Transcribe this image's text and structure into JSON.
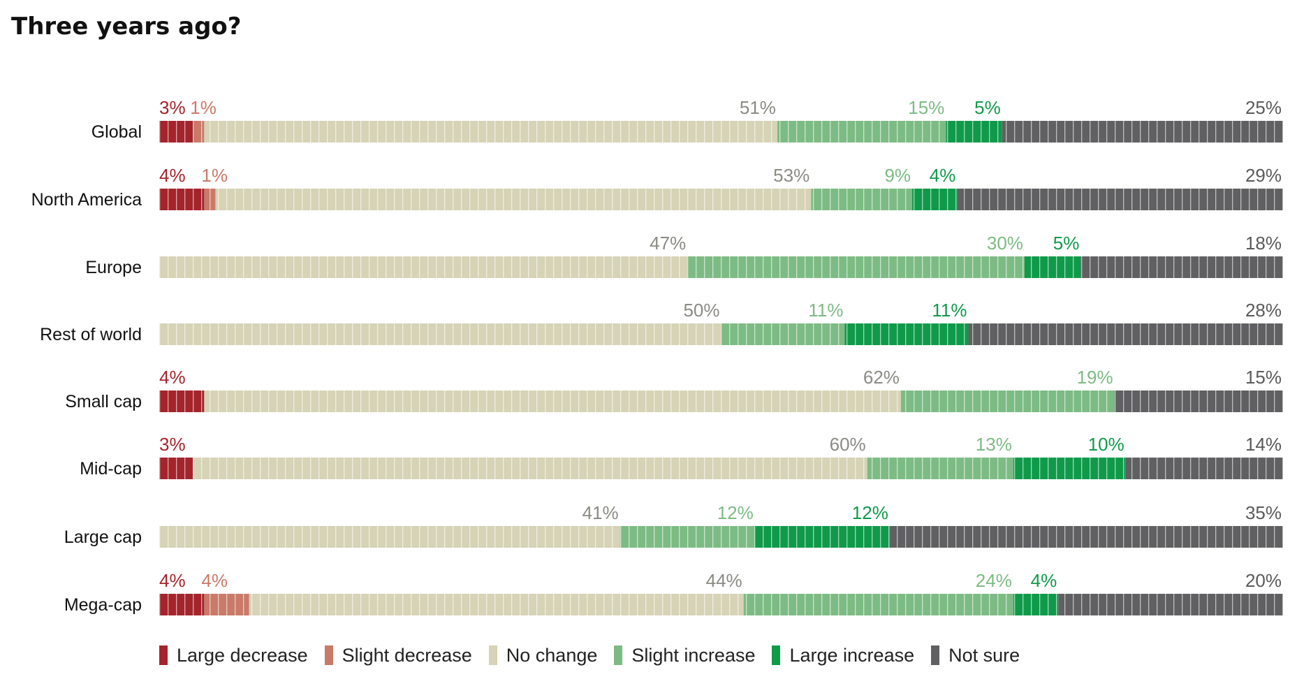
{
  "chart_data": {
    "type": "bar",
    "stacked": true,
    "orientation": "horizontal",
    "title": "Three years ago?",
    "categories": [
      "Global",
      "North America",
      "Europe",
      "Rest of world",
      "Small cap",
      "Mid-cap",
      "Large cap",
      "Mega-cap"
    ],
    "series": [
      {
        "name": "Large decrease",
        "color": "#a4242c",
        "values": [
          3,
          4,
          0,
          0,
          4,
          3,
          0,
          4
        ],
        "labels": [
          "3%",
          "4%",
          "",
          "",
          "4%",
          "3%",
          "",
          "4%"
        ]
      },
      {
        "name": "Slight decrease",
        "color": "#c97a68",
        "values": [
          1,
          1,
          0,
          0,
          0,
          0,
          0,
          4
        ],
        "labels": [
          "1%",
          "1%",
          "",
          "",
          "",
          "",
          "",
          "4%"
        ]
      },
      {
        "name": "No change",
        "color": "#d6d3b6",
        "values": [
          51,
          53,
          47,
          50,
          62,
          60,
          41,
          44
        ],
        "labels": [
          "51%",
          "53%",
          "47%",
          "50%",
          "62%",
          "60%",
          "41%",
          "44%"
        ]
      },
      {
        "name": "Slight increase",
        "color": "#7dbb84",
        "values": [
          15,
          9,
          30,
          11,
          19,
          13,
          12,
          24
        ],
        "labels": [
          "15%",
          "9%",
          "30%",
          "11%",
          "19%",
          "13%",
          "12%",
          "24%"
        ]
      },
      {
        "name": "Large increase",
        "color": "#0f9a4a",
        "values": [
          5,
          4,
          5,
          11,
          0,
          10,
          12,
          4
        ],
        "labels": [
          "5%",
          "4%",
          "5%",
          "11%",
          "",
          "10%",
          "12%",
          "4%"
        ]
      },
      {
        "name": "Not sure",
        "color": "#606062",
        "values": [
          25,
          29,
          18,
          28,
          15,
          14,
          35,
          20
        ],
        "labels": [
          "25%",
          "29%",
          "18%",
          "28%",
          "15%",
          "14%",
          "35%",
          "20%"
        ]
      }
    ],
    "label_colors": [
      "#a4242c",
      "#c97a68",
      "#8b8b84",
      "#7dbb84",
      "#0f9a4a",
      "#5a5a5c"
    ],
    "legend_position": "bottom"
  }
}
